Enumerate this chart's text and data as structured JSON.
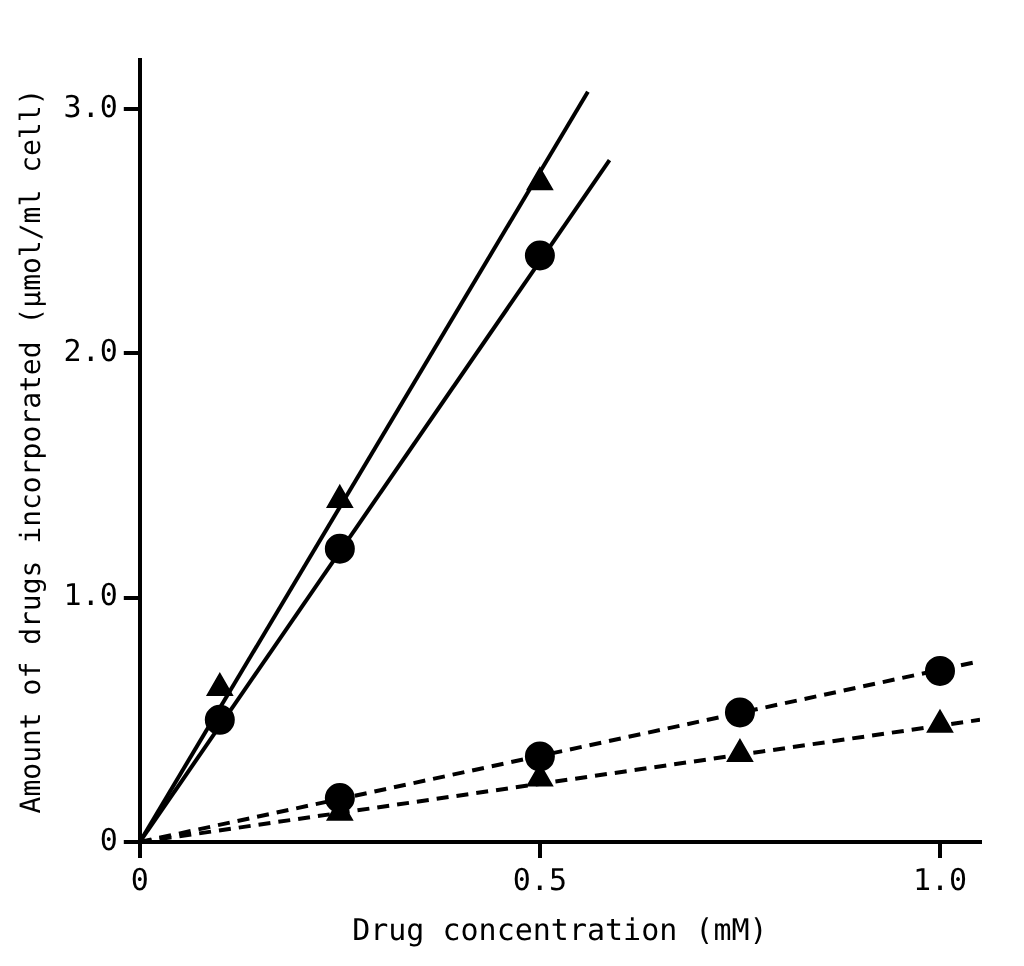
{
  "chart_data": {
    "type": "scatter",
    "xlabel": "Drug concentration (mM)",
    "ylabel": "Amount of drugs incorporated (μmol/ml cell)",
    "xlim": [
      0,
      1.05
    ],
    "ylim": [
      0,
      3.2
    ],
    "xticks": [
      0,
      {
        "value": 0.5,
        "label": "0.5"
      },
      {
        "value": 1,
        "label": "1.0"
      }
    ],
    "yticks": [
      0,
      {
        "value": 1,
        "label": "1.0"
      },
      {
        "value": 2,
        "label": "2.0"
      },
      {
        "value": 3,
        "label": "3.0"
      }
    ],
    "grid": false,
    "legend": false,
    "series": [
      {
        "type": "line",
        "color": "#000000",
        "line_style": "solid",
        "marker": "none",
        "x": [
          0,
          0.56
        ],
        "values": [
          0,
          3.07
        ]
      },
      {
        "type": "line",
        "color": "#000000",
        "line_style": "solid",
        "marker": "none",
        "x": [
          0,
          0.587
        ],
        "values": [
          0,
          2.79
        ]
      },
      {
        "type": "line",
        "color": "#000000",
        "line_style": "dashed",
        "marker": "none",
        "x": [
          0,
          1.05
        ],
        "values": [
          0,
          0.74
        ]
      },
      {
        "type": "line",
        "color": "#000000",
        "line_style": "dashed",
        "marker": "none",
        "x": [
          0,
          1.05
        ],
        "values": [
          0,
          0.5
        ]
      },
      {
        "type": "scatter",
        "color": "#000000",
        "marker": "triangle",
        "x": [
          0.1,
          0.25,
          0.5
        ],
        "values": [
          0.63,
          1.4,
          2.7
        ]
      },
      {
        "type": "scatter",
        "color": "#000000",
        "marker": "circle",
        "x": [
          0.1,
          0.25,
          0.5
        ],
        "values": [
          0.5,
          1.2,
          2.4
        ]
      },
      {
        "type": "scatter",
        "color": "#000000",
        "marker": "circle",
        "x": [
          0.25,
          0.5,
          0.75,
          1.0
        ],
        "values": [
          0.18,
          0.35,
          0.53,
          0.7
        ]
      },
      {
        "type": "scatter",
        "color": "#000000",
        "marker": "triangle",
        "x": [
          0.25,
          0.5,
          0.75,
          1.0
        ],
        "values": [
          0.12,
          0.26,
          0.36,
          0.48
        ]
      }
    ]
  }
}
